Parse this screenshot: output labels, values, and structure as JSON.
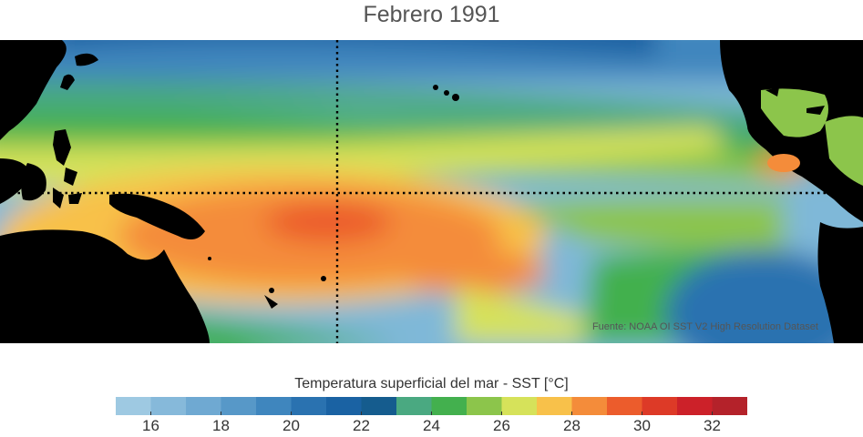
{
  "title": "Febrero 1991",
  "source_note": "Fuente: NOAA OI SST V2 High Resolution Dataset",
  "colorbar": {
    "label": "Temperatura superficial del mar - SST  [°C]",
    "min": 15,
    "max": 33,
    "step": 1,
    "colors": [
      "#9ec9e2",
      "#86b9da",
      "#6fa9d2",
      "#5798c8",
      "#3f86be",
      "#2a72b0",
      "#1a62a3",
      "#155c8e",
      "#4aa981",
      "#43b04e",
      "#8cc54b",
      "#d6e25a",
      "#f8c14a",
      "#f48c3a",
      "#ec5c2c",
      "#dd3a27",
      "#cc2129",
      "#b4222a"
    ],
    "tick_values": [
      16,
      18,
      20,
      22,
      24,
      26,
      28,
      30,
      32
    ]
  },
  "map": {
    "reference_lines": [
      "equator",
      "date-line"
    ]
  }
}
